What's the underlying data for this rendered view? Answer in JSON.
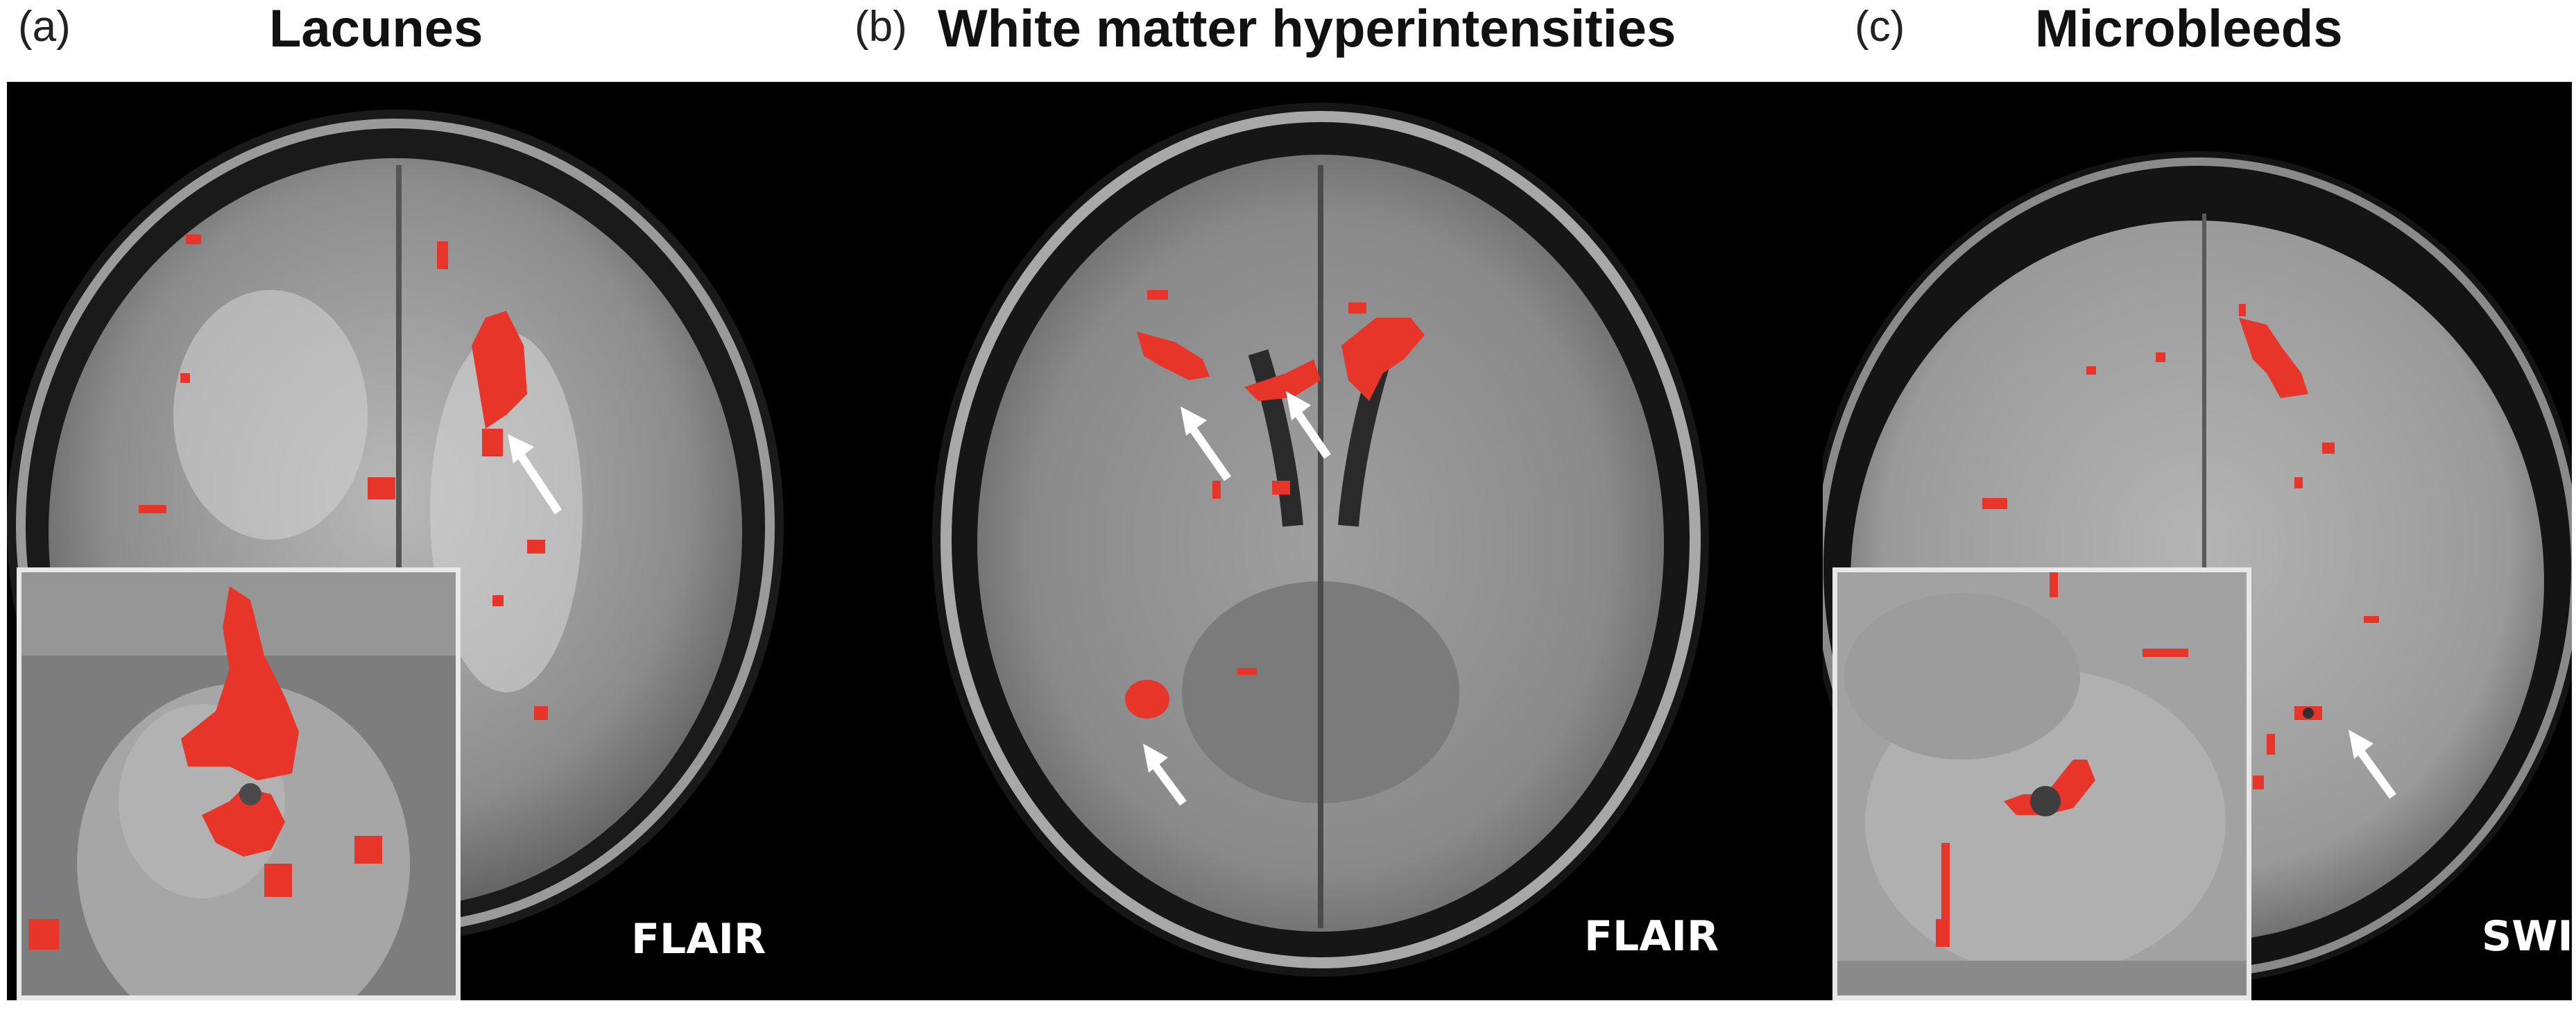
{
  "panels": [
    {
      "letter": "(a)",
      "title": "Lacunes",
      "sequence": "FLAIR"
    },
    {
      "letter": "(b)",
      "title": "White matter hyperintensities",
      "sequence": "FLAIR"
    },
    {
      "letter": "(c)",
      "title": "Microbleeds",
      "sequence": "SWI"
    }
  ],
  "colors": {
    "lesion": "#e8352a",
    "frame": "#e8e8e8",
    "background": "#000000",
    "arrow": "#ffffff"
  }
}
